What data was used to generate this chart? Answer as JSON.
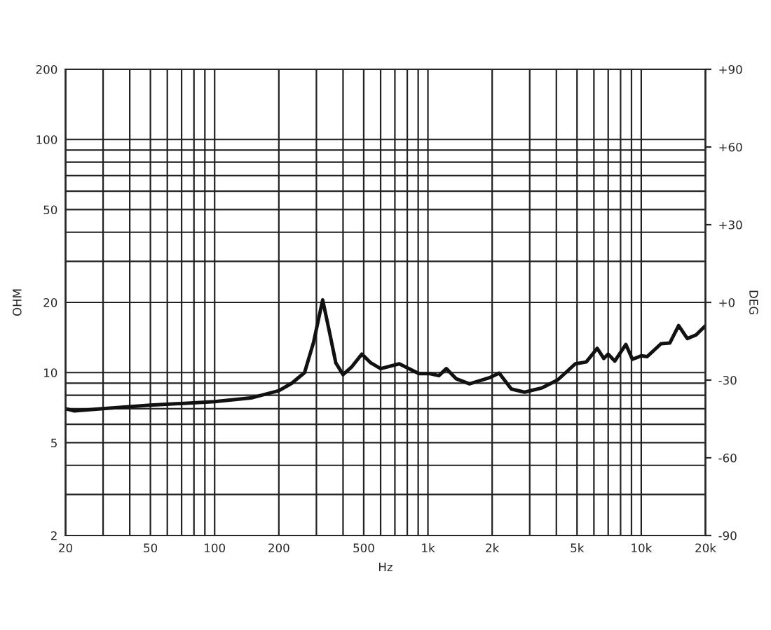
{
  "chart_data": {
    "type": "line",
    "xlabel": "Hz",
    "ylabel": "OHM",
    "y2label": "DEG",
    "log": "xy",
    "grid": true,
    "marker": "none",
    "line_style": "solid",
    "xlim": [
      20,
      20000
    ],
    "ylim": [
      2,
      200
    ],
    "y2lim": [
      -90,
      90
    ],
    "xticks": [
      20,
      {
        "value": 30,
        "label": null
      },
      {
        "value": 40,
        "label": null
      },
      50,
      {
        "value": 60,
        "label": null
      },
      {
        "value": 70,
        "label": null
      },
      {
        "value": 80,
        "label": null
      },
      {
        "value": 90,
        "label": null
      },
      100,
      200,
      {
        "value": 300,
        "label": null
      },
      {
        "value": 400,
        "label": null
      },
      500,
      {
        "value": 600,
        "label": null
      },
      {
        "value": 700,
        "label": null
      },
      {
        "value": 800,
        "label": null
      },
      {
        "value": 900,
        "label": null
      },
      {
        "value": 1000,
        "label": "1k"
      },
      {
        "value": 2000,
        "label": "2k"
      },
      {
        "value": 3000,
        "label": null
      },
      {
        "value": 4000,
        "label": null
      },
      {
        "value": 5000,
        "label": "5k"
      },
      {
        "value": 6000,
        "label": null
      },
      {
        "value": 7000,
        "label": null
      },
      {
        "value": 8000,
        "label": null
      },
      {
        "value": 9000,
        "label": null
      },
      {
        "value": 10000,
        "label": "10k"
      },
      {
        "value": 20000,
        "label": "20k"
      }
    ],
    "yticks": [
      2,
      {
        "value": 3,
        "label": null
      },
      {
        "value": 4,
        "label": null
      },
      5,
      {
        "value": 6,
        "label": null
      },
      {
        "value": 7,
        "label": null
      },
      {
        "value": 8,
        "label": null
      },
      {
        "value": 9,
        "label": null
      },
      10,
      20,
      {
        "value": 30,
        "label": null
      },
      {
        "value": 40,
        "label": null
      },
      50,
      {
        "value": 60,
        "label": null
      },
      {
        "value": 70,
        "label": null
      },
      {
        "value": 80,
        "label": null
      },
      {
        "value": 90,
        "label": null
      },
      100,
      200
    ],
    "y2ticks": [
      {
        "value": -90,
        "label": "-90"
      },
      {
        "value": -60,
        "label": "-60"
      },
      {
        "value": -30,
        "label": "-30"
      },
      {
        "value": 0,
        "label": "+0"
      },
      {
        "value": 30,
        "label": "+30"
      },
      {
        "value": 60,
        "label": "+60"
      },
      {
        "value": 90,
        "label": "+90"
      }
    ],
    "series": [
      {
        "color": "#111111",
        "x": [
          20,
          22,
          30,
          50,
          100,
          150,
          200,
          230,
          264,
          291,
          321,
          345,
          370,
          400,
          440,
          490,
          540,
          600,
          734,
          908,
          1023,
          1125,
          1219,
          1358,
          1566,
          1940,
          2157,
          2460,
          2838,
          3430,
          4058,
          4906,
          5522,
          6215,
          6674,
          7000,
          7512,
          8467,
          9090,
          10000,
          10650,
          12380,
          13620,
          14970,
          16440,
          18070,
          20000
        ],
        "values": [
          7.0,
          6.85,
          7.0,
          7.25,
          7.5,
          7.8,
          8.36,
          9.0,
          10.0,
          13.5,
          20.5,
          15,
          11,
          9.8,
          10.6,
          12.0,
          11.0,
          10.4,
          10.9,
          9.9,
          9.9,
          9.7,
          10.4,
          9.4,
          8.95,
          9.5,
          9.95,
          8.5,
          8.24,
          8.6,
          9.3,
          10.9,
          11.1,
          12.7,
          11.5,
          12.0,
          11.2,
          13.2,
          11.4,
          11.8,
          11.7,
          13.3,
          13.4,
          15.9,
          14.0,
          14.5,
          15.9
        ]
      }
    ]
  }
}
